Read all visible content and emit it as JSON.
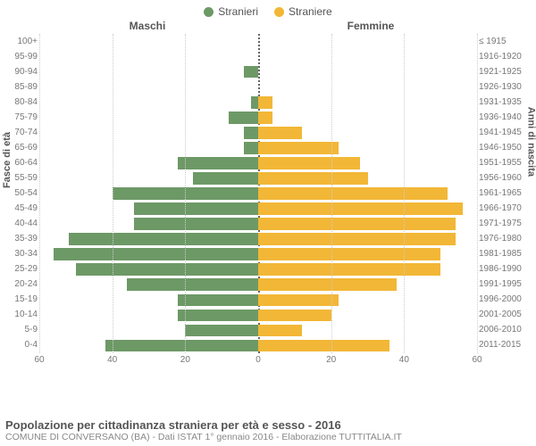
{
  "legend": {
    "male": {
      "label": "Stranieri",
      "color": "#6d9966"
    },
    "female": {
      "label": "Straniere",
      "color": "#f2b736"
    }
  },
  "headers": {
    "male": "Maschi",
    "female": "Femmine"
  },
  "axis": {
    "left_title": "Fasce di età",
    "right_title": "Anni di nascita",
    "xmax": 60,
    "xticks_left": [
      60,
      40,
      20,
      0
    ],
    "xticks_right": [
      0,
      20,
      40,
      60
    ]
  },
  "colors": {
    "male_bar": "#6d9966",
    "female_bar": "#f2b736",
    "grid": "#cccccc",
    "centerline": "#666666",
    "bg": "#ffffff"
  },
  "rows": [
    {
      "age": "0-4",
      "birth": "2011-2015",
      "m": 42,
      "f": 36
    },
    {
      "age": "5-9",
      "birth": "2006-2010",
      "m": 20,
      "f": 12
    },
    {
      "age": "10-14",
      "birth": "2001-2005",
      "m": 22,
      "f": 20
    },
    {
      "age": "15-19",
      "birth": "1996-2000",
      "m": 22,
      "f": 22
    },
    {
      "age": "20-24",
      "birth": "1991-1995",
      "m": 36,
      "f": 38
    },
    {
      "age": "25-29",
      "birth": "1986-1990",
      "m": 50,
      "f": 50
    },
    {
      "age": "30-34",
      "birth": "1981-1985",
      "m": 56,
      "f": 50
    },
    {
      "age": "35-39",
      "birth": "1976-1980",
      "m": 52,
      "f": 54
    },
    {
      "age": "40-44",
      "birth": "1971-1975",
      "m": 34,
      "f": 54
    },
    {
      "age": "45-49",
      "birth": "1966-1970",
      "m": 34,
      "f": 56
    },
    {
      "age": "50-54",
      "birth": "1961-1965",
      "m": 40,
      "f": 52
    },
    {
      "age": "55-59",
      "birth": "1956-1960",
      "m": 18,
      "f": 30
    },
    {
      "age": "60-64",
      "birth": "1951-1955",
      "m": 22,
      "f": 28
    },
    {
      "age": "65-69",
      "birth": "1946-1950",
      "m": 4,
      "f": 22
    },
    {
      "age": "70-74",
      "birth": "1941-1945",
      "m": 4,
      "f": 12
    },
    {
      "age": "75-79",
      "birth": "1936-1940",
      "m": 8,
      "f": 4
    },
    {
      "age": "80-84",
      "birth": "1931-1935",
      "m": 2,
      "f": 4
    },
    {
      "age": "85-89",
      "birth": "1926-1930",
      "m": 0,
      "f": 0
    },
    {
      "age": "90-94",
      "birth": "1921-1925",
      "m": 4,
      "f": 0
    },
    {
      "age": "95-99",
      "birth": "1916-1920",
      "m": 0,
      "f": 0
    },
    {
      "age": "100+",
      "birth": "≤ 1915",
      "m": 0,
      "f": 0
    }
  ],
  "footer": {
    "title": "Popolazione per cittadinanza straniera per età e sesso - 2016",
    "sub": "COMUNE DI CONVERSANO (BA) - Dati ISTAT 1° gennaio 2016 - Elaborazione TUTTITALIA.IT"
  }
}
